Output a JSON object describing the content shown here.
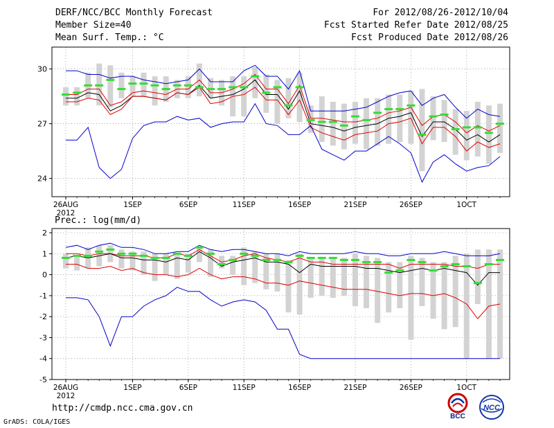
{
  "header": {
    "title": "DERF/NCC/BCC Monthly Forecast",
    "member_size": "Member Size=40",
    "variable": "Mean Surf. Temp.: °C",
    "period": "For 2012/08/26-2012/10/04",
    "refer_date": "Fcst Started Refer Date 2012/08/25",
    "produced_date": "Fcst Produced Date 2012/08/26"
  },
  "footer": {
    "url": "http://cmdp.ncc.cma.gov.cn",
    "credit": "GrADS: COLA/IGES",
    "logo_left_text": "BCC",
    "logo_right_text": "NCC"
  },
  "colors": {
    "envelope": "#0000cc",
    "spread": "#e00000",
    "mean": "#000000",
    "bar": "#d3d3d3",
    "marker": "#33dd33"
  },
  "chart_data": [
    {
      "type": "line",
      "title": "Mean Surf. Temp.: °C",
      "x": [
        "26AUG",
        "27AUG",
        "28AUG",
        "29AUG",
        "30AUG",
        "31AUG",
        "1SEP",
        "2SEP",
        "3SEP",
        "4SEP",
        "5SEP",
        "6SEP",
        "7SEP",
        "8SEP",
        "9SEP",
        "10SEP",
        "11SEP",
        "12SEP",
        "13SEP",
        "14SEP",
        "15SEP",
        "16SEP",
        "17SEP",
        "18SEP",
        "19SEP",
        "20SEP",
        "21SEP",
        "22SEP",
        "23SEP",
        "24SEP",
        "25SEP",
        "26SEP",
        "27SEP",
        "28SEP",
        "29SEP",
        "30SEP",
        "1OCT",
        "2OCT",
        "3OCT",
        "4OCT"
      ],
      "xticks": [
        "26AUG\n2012",
        "1SEP",
        "6SEP",
        "11SEP",
        "16SEP",
        "21SEP",
        "26SEP",
        "1OCT"
      ],
      "xtick_index": [
        0,
        6,
        11,
        16,
        21,
        26,
        31,
        36
      ],
      "ylim": [
        23,
        31.2
      ],
      "yticks": [
        24,
        27,
        30
      ],
      "grid": true,
      "series": [
        {
          "name": "max",
          "role": "envelope",
          "values": [
            29.9,
            29.9,
            29.7,
            29.7,
            29.5,
            29.6,
            29.6,
            29.4,
            29.3,
            29.2,
            29.3,
            29.4,
            30,
            29.3,
            29.3,
            29.3,
            29.9,
            30.2,
            29.6,
            29.6,
            28.9,
            29.9,
            27.7,
            27.7,
            27.7,
            27.7,
            27.8,
            27.9,
            28.2,
            28.5,
            28.7,
            28.8,
            28.0,
            28.4,
            28.6,
            27.9,
            27.3,
            27.8,
            27.5,
            27.4
          ]
        },
        {
          "name": "upper",
          "role": "spread",
          "values": [
            28.6,
            28.6,
            28.9,
            28.9,
            28.0,
            28.2,
            28.7,
            28.8,
            28.7,
            28.6,
            28.9,
            28.9,
            29.4,
            28.7,
            28.7,
            28.9,
            29.2,
            29.7,
            28.9,
            28.9,
            28.1,
            29.1,
            27.3,
            27.3,
            27.2,
            27.1,
            27.1,
            27.2,
            27.3,
            27.6,
            27.7,
            27.9,
            26.9,
            27.4,
            27.5,
            27.1,
            26.5,
            26.9,
            26.6,
            26.9
          ]
        },
        {
          "name": "mean",
          "role": "mean",
          "values": [
            28.4,
            28.4,
            28.7,
            28.6,
            27.7,
            28.0,
            28.5,
            28.5,
            28.4,
            28.3,
            28.7,
            28.6,
            29.1,
            28.4,
            28.5,
            28.6,
            28.9,
            29.4,
            28.6,
            28.6,
            27.8,
            28.8,
            27.0,
            26.9,
            26.8,
            26.6,
            26.8,
            26.9,
            27.0,
            27.3,
            27.4,
            27.6,
            26.3,
            27.1,
            27.1,
            26.7,
            26.1,
            26.4,
            26.0,
            26.4
          ]
        },
        {
          "name": "lower",
          "role": "spread",
          "values": [
            28.2,
            28.2,
            28.4,
            28.3,
            27.5,
            27.8,
            28.5,
            28.5,
            28.4,
            28.3,
            28.7,
            28.6,
            29.0,
            28.1,
            28.2,
            28.5,
            28.6,
            29.0,
            28.3,
            28.3,
            27.5,
            28.3,
            26.8,
            26.5,
            26.3,
            26.1,
            26.4,
            26.5,
            26.6,
            27.0,
            27.1,
            27.3,
            25.9,
            26.8,
            26.8,
            26.3,
            25.5,
            26.0,
            25.7,
            25.9
          ]
        },
        {
          "name": "min",
          "role": "envelope",
          "values": [
            26.1,
            26.1,
            26.8,
            24.6,
            24.0,
            24.5,
            26.2,
            26.9,
            27.1,
            27.1,
            27.4,
            27.2,
            27.3,
            26.8,
            27.0,
            27.1,
            27.1,
            28.1,
            27.0,
            26.9,
            26.4,
            26.4,
            26.9,
            25.6,
            25.3,
            25.0,
            25.5,
            25.5,
            25.9,
            26.3,
            25.9,
            25.4,
            23.8,
            24.9,
            25.3,
            24.8,
            24.4,
            24.6,
            24.7,
            25.2
          ]
        },
        {
          "name": "median",
          "role": "marker",
          "values": [
            28.6,
            28.7,
            29.1,
            29.1,
            29.4,
            28.9,
            29.2,
            29.2,
            29.1,
            28.9,
            29.1,
            29.1,
            29.0,
            28.9,
            28.9,
            29.0,
            29.0,
            29.6,
            28.7,
            29.0,
            28.0,
            29.0,
            27.2,
            27.1,
            27.1,
            26.9,
            27.4,
            27.2,
            27.6,
            27.8,
            27.8,
            28.0,
            26.4,
            27.4,
            27.5,
            26.7,
            26.8,
            26.8,
            26.5,
            27.0
          ]
        }
      ],
      "bars": {
        "name": "member range",
        "low": [
          28.0,
          28.0,
          28.4,
          28.0,
          27.9,
          28.4,
          28.5,
          28.5,
          28.0,
          28.2,
          28.4,
          28.4,
          28.5,
          28.4,
          28.0,
          27.4,
          27.4,
          28.4,
          27.6,
          27.0,
          27.3,
          27.1,
          26.5,
          26.0,
          25.8,
          25.6,
          25.9,
          25.6,
          25.8,
          25.9,
          26.0,
          25.9,
          24.4,
          26.1,
          26.0,
          25.3,
          25.0,
          25.2,
          24.8,
          25.4
        ],
        "high": [
          29.0,
          29.0,
          29.8,
          30.3,
          30.2,
          29.8,
          29.6,
          29.8,
          29.6,
          29.6,
          29.4,
          29.6,
          30.3,
          29.5,
          29.4,
          29.6,
          29.6,
          30.1,
          29.7,
          29.4,
          29.5,
          29.8,
          28.0,
          28.5,
          28.2,
          28.1,
          28.2,
          28.4,
          28.4,
          28.6,
          28.6,
          28.8,
          28.9,
          28.5,
          28.3,
          27.8,
          27.7,
          28.2,
          28.0,
          28.1
        ]
      }
    },
    {
      "type": "line",
      "title": "Prec.: log(mm/d)",
      "x": [
        "26AUG",
        "27AUG",
        "28AUG",
        "29AUG",
        "30AUG",
        "31AUG",
        "1SEP",
        "2SEP",
        "3SEP",
        "4SEP",
        "5SEP",
        "6SEP",
        "7SEP",
        "8SEP",
        "9SEP",
        "10SEP",
        "11SEP",
        "12SEP",
        "13SEP",
        "14SEP",
        "15SEP",
        "16SEP",
        "17SEP",
        "18SEP",
        "19SEP",
        "20SEP",
        "21SEP",
        "22SEP",
        "23SEP",
        "24SEP",
        "25SEP",
        "26SEP",
        "27SEP",
        "28SEP",
        "29SEP",
        "30SEP",
        "1OCT",
        "2OCT",
        "3OCT",
        "4OCT"
      ],
      "xticks": [
        "26AUG\n2012",
        "1SEP",
        "6SEP",
        "11SEP",
        "16SEP",
        "21SEP",
        "26SEP",
        "1OCT"
      ],
      "xtick_index": [
        0,
        6,
        11,
        16,
        21,
        26,
        31,
        36
      ],
      "ylim": [
        -5,
        2.2
      ],
      "yticks": [
        -5,
        -4,
        -3,
        -2,
        -1,
        0,
        1,
        2
      ],
      "grid": true,
      "series": [
        {
          "name": "max",
          "role": "envelope",
          "values": [
            1.3,
            1.4,
            1.2,
            1.4,
            1.5,
            1.3,
            1.3,
            1.2,
            1.0,
            1.0,
            1.1,
            1.1,
            1.4,
            1.2,
            1.1,
            1.2,
            1.2,
            1.1,
            1.0,
            1.0,
            0.9,
            1.1,
            1.0,
            1.0,
            1.0,
            1.0,
            1.1,
            1.0,
            1.0,
            0.9,
            0.9,
            1.0,
            1.0,
            1.0,
            1.1,
            1.0,
            0.9,
            0.9,
            0.9,
            1.0
          ]
        },
        {
          "name": "upper",
          "role": "spread",
          "values": [
            1.0,
            1.0,
            0.9,
            1.0,
            1.0,
            0.9,
            0.9,
            0.9,
            0.8,
            0.8,
            1.0,
            0.9,
            1.2,
            0.9,
            0.6,
            0.7,
            0.9,
            1.0,
            0.8,
            0.7,
            0.6,
            0.8,
            0.6,
            0.6,
            0.5,
            0.5,
            0.5,
            0.5,
            0.5,
            0.5,
            0.3,
            0.5,
            0.5,
            0.5,
            0.5,
            0.4,
            0.4,
            0.3,
            0.5,
            0.5
          ]
        },
        {
          "name": "mean",
          "role": "mean",
          "values": [
            0.8,
            0.9,
            0.8,
            0.9,
            1.0,
            0.8,
            0.8,
            0.7,
            0.7,
            0.6,
            0.8,
            0.7,
            1.1,
            0.8,
            0.4,
            0.6,
            0.7,
            0.8,
            0.6,
            0.6,
            0.5,
            0.1,
            0.5,
            0.4,
            0.4,
            0.4,
            0.4,
            0.3,
            0.3,
            0.2,
            0.1,
            0.2,
            0.3,
            0.2,
            0.3,
            0.2,
            0.1,
            -0.5,
            0.1,
            0.1
          ]
        },
        {
          "name": "lower",
          "role": "spread",
          "values": [
            0.5,
            0.5,
            0.3,
            0.3,
            0.4,
            0.2,
            0.3,
            0.1,
            0.0,
            0.0,
            -0.1,
            0.0,
            0.3,
            0.0,
            -0.2,
            -0.1,
            -0.1,
            -0.2,
            -0.4,
            -0.4,
            -0.5,
            -0.3,
            -0.4,
            -0.5,
            -0.6,
            -0.7,
            -0.7,
            -0.7,
            -0.8,
            -0.9,
            -1.0,
            -0.9,
            -0.9,
            -1.0,
            -0.9,
            -1.1,
            -1.4,
            -2.1,
            -1.5,
            -1.4
          ]
        },
        {
          "name": "min",
          "role": "envelope",
          "values": [
            -1.1,
            -1.1,
            -1.2,
            -2.0,
            -3.4,
            -2.0,
            -2.0,
            -1.5,
            -1.2,
            -1.0,
            -0.6,
            -0.8,
            -0.8,
            -1.2,
            -1.5,
            -1.3,
            -1.2,
            -1.3,
            -1.7,
            -2.6,
            -2.6,
            -3.8,
            -4.0,
            -4.0,
            -4.0,
            -4.0,
            -4.0,
            -4.0,
            -4.0,
            -4.0,
            -4.0,
            -4.0,
            -4.0,
            -4.0,
            -4.0,
            -4.0,
            -4.0,
            -4.0,
            -4.0,
            -4.0
          ]
        },
        {
          "name": "median",
          "role": "marker",
          "values": [
            0.8,
            0.9,
            0.9,
            1.1,
            1.2,
            1.0,
            1.0,
            0.9,
            0.8,
            0.8,
            1.0,
            0.9,
            1.3,
            1.0,
            0.5,
            0.7,
            1.0,
            0.9,
            0.7,
            0.7,
            0.6,
            0.9,
            0.8,
            0.8,
            0.8,
            0.7,
            0.7,
            0.6,
            0.6,
            0.1,
            0.2,
            0.7,
            0.6,
            0.2,
            0.4,
            0.5,
            0.4,
            -0.4,
            0.5,
            0.7
          ]
        },
        {
          "name": "median2",
          "role": "marker2",
          "values": [
            0.8,
            0.9,
            0.8,
            0.9,
            1.0,
            0.8,
            0.8,
            0.7,
            0.7,
            0.6,
            0.8,
            0.7,
            1.1,
            0.8,
            0.4,
            0.6,
            0.7,
            0.8,
            0.6,
            0.6,
            0.5,
            0.1,
            0.5,
            0.4,
            0.4,
            0.4,
            0.4,
            0.3,
            0.3,
            0.2,
            0.1,
            0.2,
            0.3,
            0.2,
            0.3,
            0.2,
            0.1,
            -0.5,
            0.1,
            0.1
          ]
        }
      ],
      "bars": {
        "name": "member range",
        "low": [
          0.3,
          0.2,
          0.3,
          0.4,
          0.6,
          0.3,
          0.2,
          0.0,
          -0.3,
          0.0,
          -0.2,
          0.1,
          0.6,
          -0.1,
          0.3,
          0.0,
          -0.5,
          -0.4,
          -0.7,
          -0.8,
          -1.8,
          -1.9,
          -1.1,
          -1.0,
          -1.1,
          -1.0,
          -1.5,
          -1.6,
          -2.3,
          -1.8,
          -1.6,
          -3.1,
          -1.5,
          -2.1,
          -2.6,
          -2.5,
          -4.0,
          -1.4,
          -4.0,
          -4.0
        ],
        "high": [
          1.0,
          0.9,
          1.3,
          1.4,
          1.4,
          1.2,
          1.1,
          1.1,
          1.0,
          1.0,
          1.0,
          1.0,
          1.3,
          1.2,
          0.9,
          0.9,
          1.3,
          1.1,
          1.0,
          1.0,
          0.7,
          1.0,
          0.8,
          0.8,
          0.8,
          0.8,
          1.0,
          0.9,
          0.8,
          0.6,
          0.6,
          0.9,
          0.8,
          0.6,
          0.6,
          0.9,
          1.0,
          1.2,
          1.2,
          1.2
        ]
      }
    }
  ]
}
